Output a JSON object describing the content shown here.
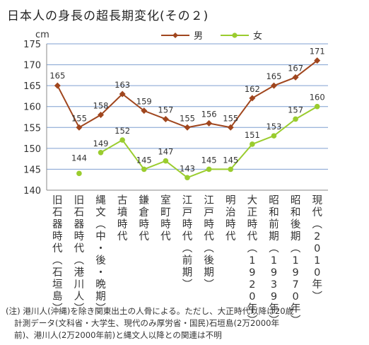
{
  "chart_data": {
    "type": "line",
    "title": "日本人の身長の超長期変化(その２)",
    "unit": "cm",
    "ylim": [
      140,
      175
    ],
    "yticks": [
      140,
      145,
      150,
      155,
      160,
      165,
      170,
      175
    ],
    "grid": true,
    "legend_position": "top",
    "categories": [
      "旧石器時代(石垣島)",
      "旧石器時代(港川人)",
      "縄文(中・後・晩期)",
      "古墳時代",
      "鎌倉時代",
      "室町時代",
      "江戸時代(前期)",
      "江戸時代(後期)",
      "明治時代",
      "大正時代(1920年)",
      "昭和前期(1939年)",
      "昭和後期(1970年)",
      "現代(2010年)"
    ],
    "series": [
      {
        "name": "男",
        "color": "#a0461e",
        "marker": "diamond",
        "connect_from": 0,
        "values": [
          165,
          155,
          158,
          163,
          159,
          157,
          155,
          156,
          155,
          162,
          165,
          167,
          171
        ],
        "labels": [
          "165",
          "155",
          "158",
          "163",
          "159",
          "157",
          "155",
          "156",
          "155",
          "162",
          "165",
          "167",
          "171"
        ]
      },
      {
        "name": "女",
        "color": "#9acc2e",
        "marker": "circle",
        "connect_from": 2,
        "values": [
          null,
          144,
          149,
          152,
          145,
          147,
          143,
          145,
          145,
          151,
          153,
          157,
          160
        ],
        "labels": [
          null,
          "144",
          "149",
          "152",
          "145",
          "147",
          "143",
          "145",
          "145",
          "151",
          "153",
          "157",
          "160"
        ]
      }
    ],
    "note_lines": [
      "(注) 港川人(沖縄)を除き関東出土の人骨による。ただし、大正時代以降は20歳",
      "計測データ(文科省・大学生、現代のみ厚労省・国民)石垣島(2万2000年",
      "前)、港川人(2万2000年前)と縄文人以降との関連は不明"
    ]
  }
}
